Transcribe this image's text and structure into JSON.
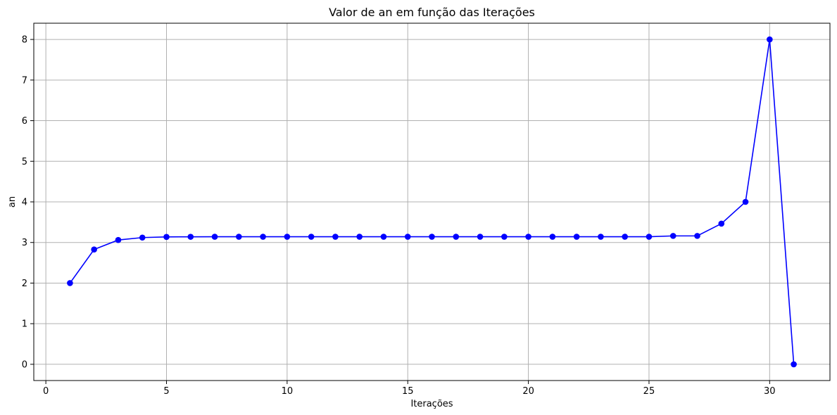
{
  "chart_data": {
    "type": "line",
    "title": "Valor de an em função das Iterações",
    "xlabel": "Iterações",
    "ylabel": "an",
    "xlim": [
      -0.5,
      32.5
    ],
    "ylim": [
      -0.4,
      8.4
    ],
    "xticks": [
      0,
      5,
      10,
      15,
      20,
      25,
      30
    ],
    "yticks": [
      0,
      1,
      2,
      3,
      4,
      5,
      6,
      7,
      8
    ],
    "grid": true,
    "series": [
      {
        "color": "#0000ff",
        "marker": "circle",
        "x": [
          1,
          2,
          3,
          4,
          5,
          6,
          7,
          8,
          9,
          10,
          11,
          12,
          13,
          14,
          15,
          16,
          17,
          18,
          19,
          20,
          21,
          22,
          23,
          24,
          25,
          26,
          27,
          28,
          29,
          30,
          31
        ],
        "y": [
          2.0,
          2.828,
          3.061,
          3.121,
          3.137,
          3.14,
          3.141,
          3.142,
          3.142,
          3.142,
          3.142,
          3.142,
          3.142,
          3.142,
          3.142,
          3.142,
          3.142,
          3.142,
          3.142,
          3.142,
          3.142,
          3.142,
          3.142,
          3.142,
          3.142,
          3.162,
          3.162,
          3.464,
          4.0,
          8.0,
          0.0
        ]
      }
    ]
  }
}
